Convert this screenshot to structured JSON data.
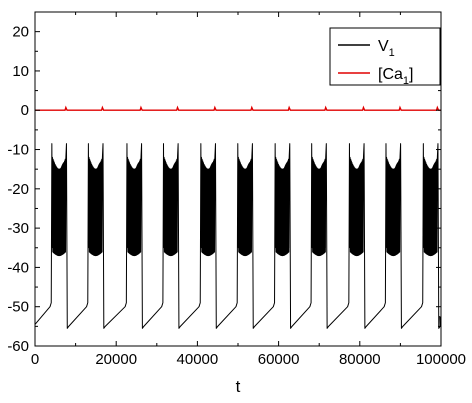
{
  "chart_data": {
    "type": "line",
    "xlabel": "t",
    "ylabel": "",
    "xlim": [
      0,
      100000
    ],
    "ylim": [
      -60,
      25
    ],
    "x_ticks": [
      0,
      20000,
      40000,
      60000,
      80000,
      100000
    ],
    "x_tick_labels": [
      "0",
      "20000",
      "40000",
      "60000",
      "80000",
      "100000"
    ],
    "y_ticks": [
      -60,
      -50,
      -40,
      -30,
      -20,
      -10,
      0,
      10,
      20
    ],
    "y_tick_labels": [
      "-60",
      "-50",
      "-40",
      "-30",
      "-20",
      "-10",
      "0",
      "10",
      "20"
    ],
    "grid": false,
    "legend_position": "top-right",
    "burst_onsets": [
      4000,
      13000,
      22500,
      31500,
      40700,
      49800,
      59000,
      68000,
      77300,
      86300,
      95500
    ],
    "series": [
      {
        "name": "V",
        "subscript": "1",
        "color": "#000000",
        "resting_low": -55.5,
        "pre_burst": -50,
        "spike_peak": -8.5,
        "burst_upper": -14,
        "burst_lower": -37,
        "burst_center": -26
      },
      {
        "name": "[Ca",
        "subscript": "1",
        "suffix": "]",
        "color": "#e00000",
        "baseline": 0,
        "peak": 0.7
      }
    ]
  }
}
